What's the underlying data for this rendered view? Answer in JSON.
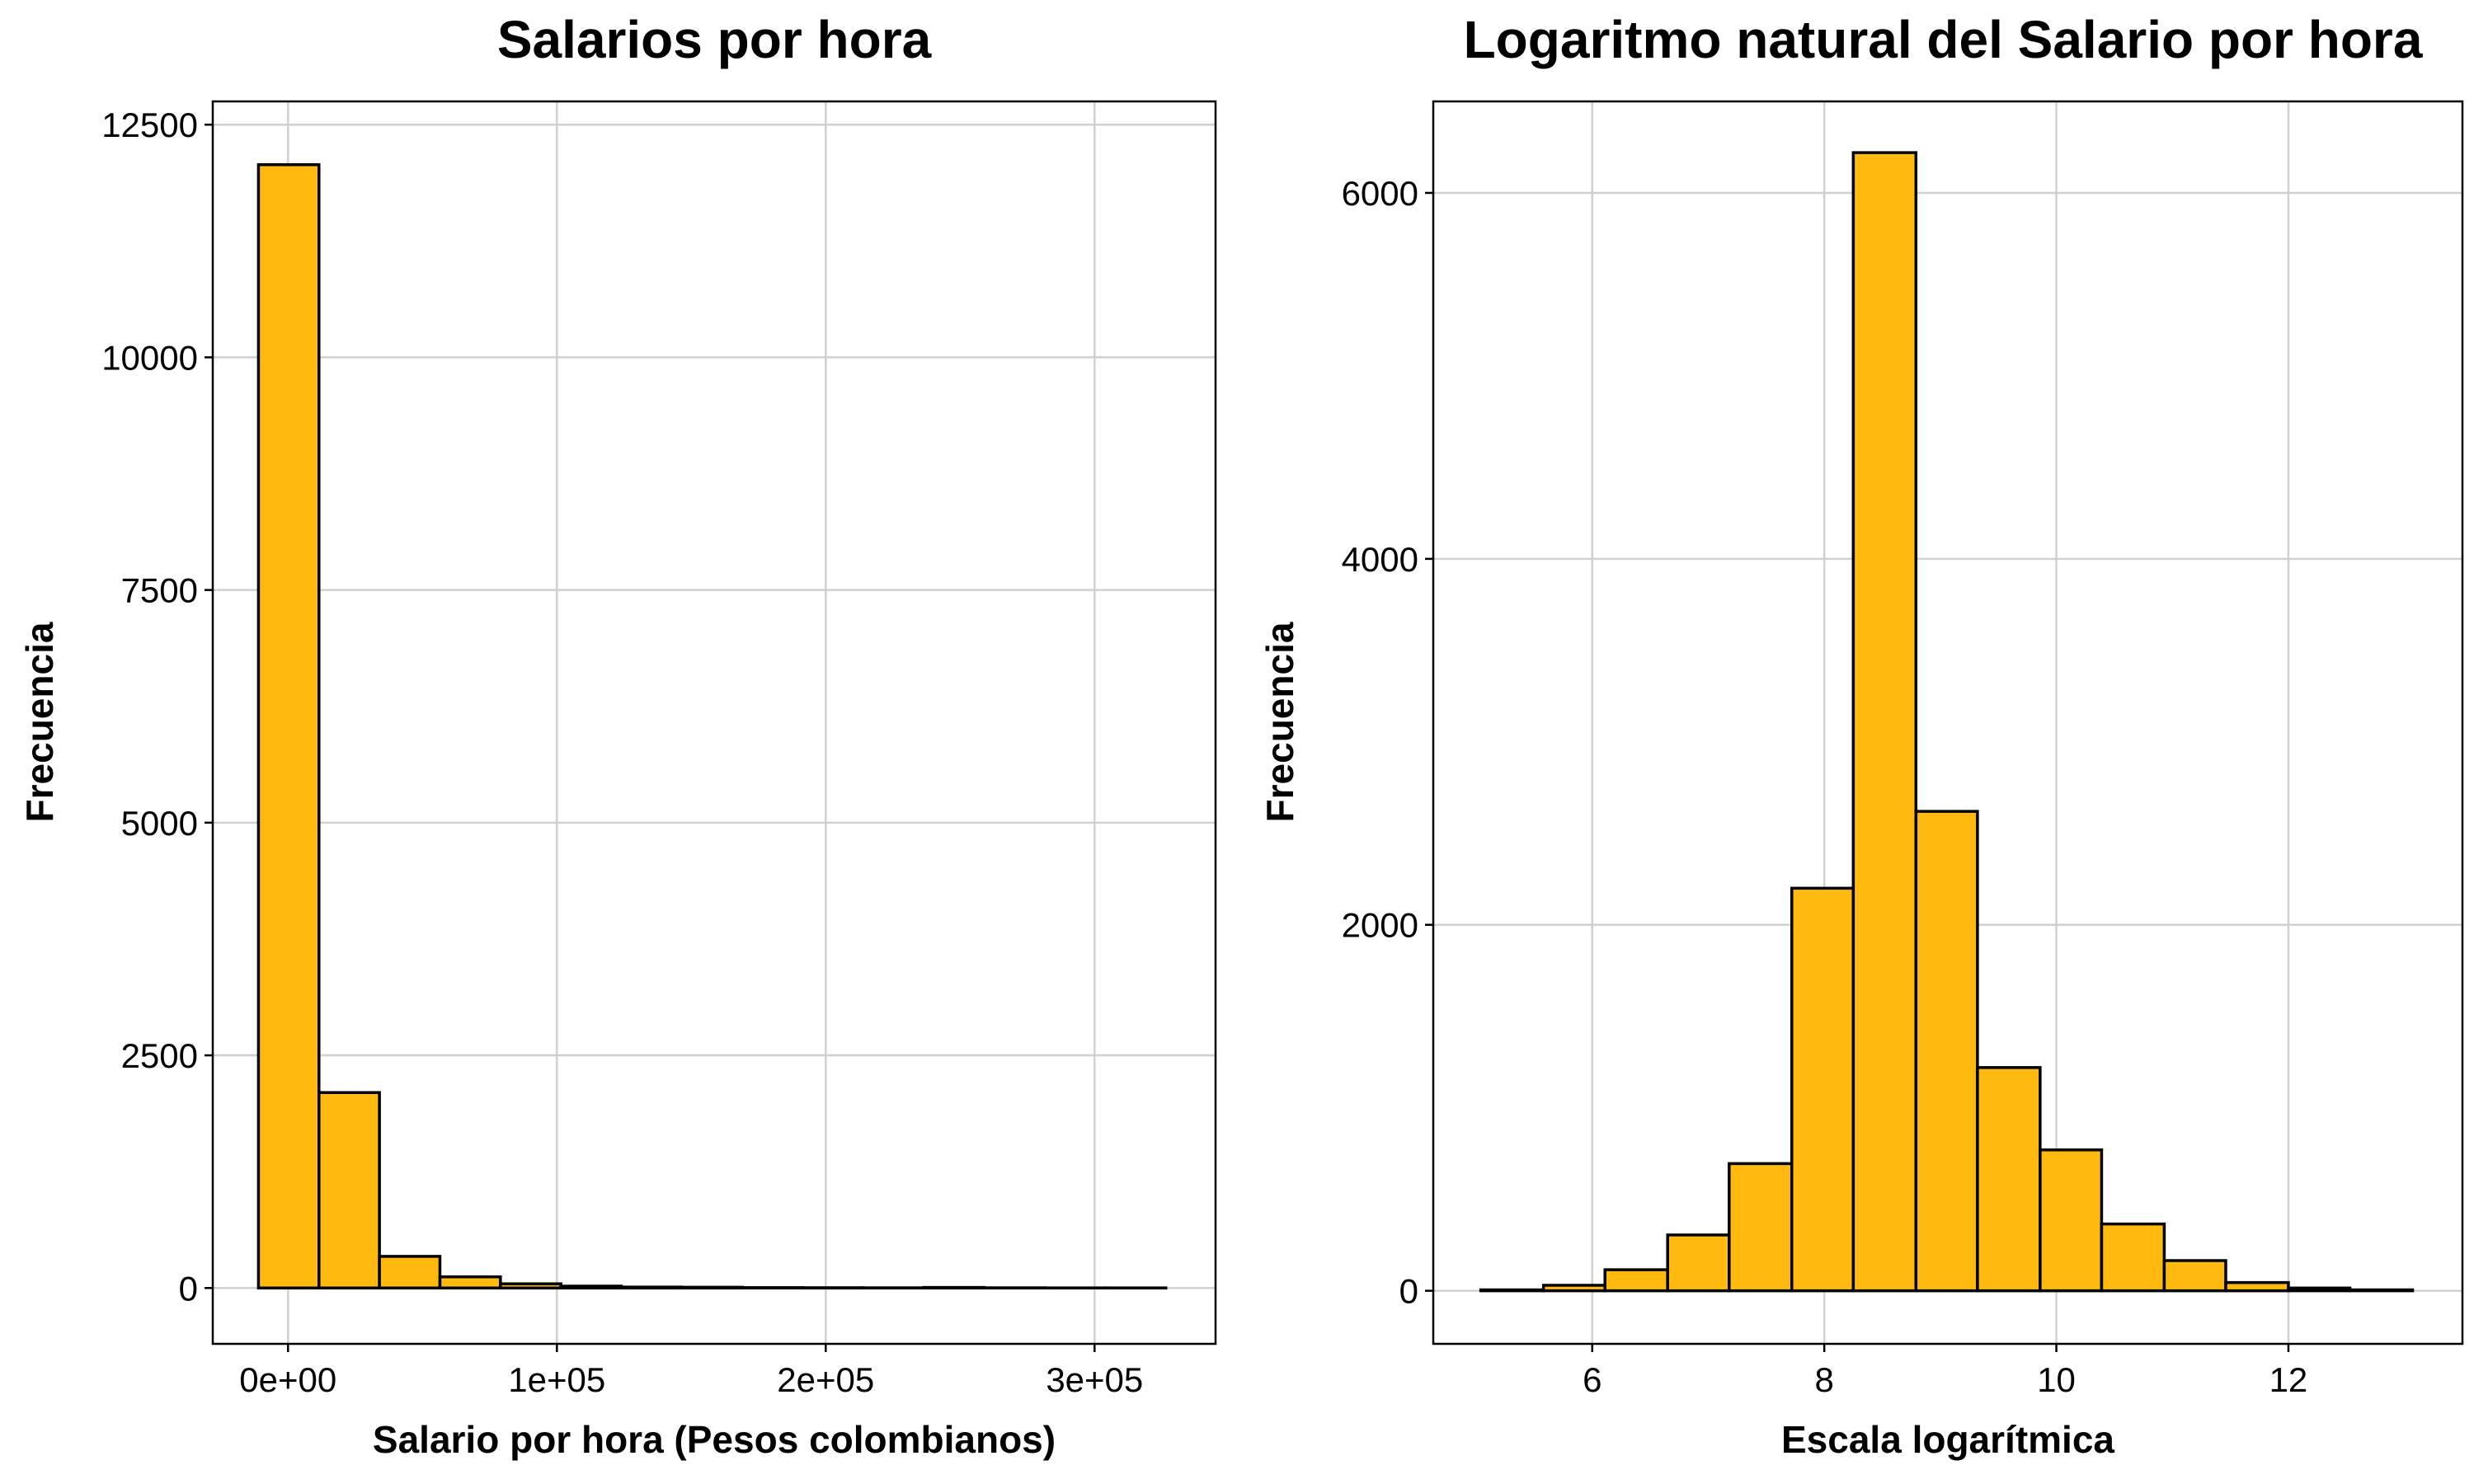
{
  "colors": {
    "bar_fill": "#FFB90F",
    "bar_stroke": "#000000",
    "grid": "#d0d0d0",
    "background": "#ffffff"
  },
  "chart_data": [
    {
      "type": "bar",
      "title": "Salarios por hora",
      "xlabel": "Salario por hora (Pesos colombianos)",
      "ylabel": "Frecuencia",
      "xlim": [
        -28000,
        345000
      ],
      "ylim": [
        -600,
        12750
      ],
      "xticks": [
        0,
        100000,
        200000,
        300000
      ],
      "xtick_labels": [
        "0e+00",
        "1e+05",
        "2e+05",
        "3e+05"
      ],
      "yticks": [
        0,
        2500,
        5000,
        7500,
        10000,
        12500
      ],
      "ytick_labels": [
        "0",
        "2500",
        "5000",
        "7500",
        "10000",
        "12500"
      ],
      "grid": true,
      "bins": [
        {
          "x0": -11000,
          "x1": 11500,
          "count": 12070
        },
        {
          "x0": 11500,
          "x1": 34000,
          "count": 2100
        },
        {
          "x0": 34000,
          "x1": 56500,
          "count": 340
        },
        {
          "x0": 56500,
          "x1": 79000,
          "count": 120
        },
        {
          "x0": 79000,
          "x1": 101500,
          "count": 45
        },
        {
          "x0": 101500,
          "x1": 124000,
          "count": 20
        },
        {
          "x0": 124000,
          "x1": 146500,
          "count": 10
        },
        {
          "x0": 146500,
          "x1": 169000,
          "count": 8
        },
        {
          "x0": 169000,
          "x1": 191500,
          "count": 4
        },
        {
          "x0": 191500,
          "x1": 214000,
          "count": 3
        },
        {
          "x0": 214000,
          "x1": 236500,
          "count": 2
        },
        {
          "x0": 236500,
          "x1": 259000,
          "count": 6
        },
        {
          "x0": 259000,
          "x1": 281500,
          "count": 2
        },
        {
          "x0": 281500,
          "x1": 304000,
          "count": 1
        },
        {
          "x0": 304000,
          "x1": 326500,
          "count": 1
        }
      ]
    },
    {
      "type": "bar",
      "title": "Logaritmo natural del Salario por hora",
      "xlabel": "Escala logarítmica",
      "ylabel": "Frecuencia",
      "xlim": [
        4.63,
        13.5
      ],
      "ylim": [
        -290,
        6500
      ],
      "xticks": [
        6,
        8,
        10,
        12
      ],
      "xtick_labels": [
        "6",
        "8",
        "10",
        "12"
      ],
      "yticks": [
        0,
        2000,
        4000,
        6000
      ],
      "ytick_labels": [
        "0",
        "2000",
        "4000",
        "6000"
      ],
      "grid": true,
      "bins": [
        {
          "x0": 5.04,
          "x1": 5.58,
          "count": 5
        },
        {
          "x0": 5.58,
          "x1": 6.11,
          "count": 30
        },
        {
          "x0": 6.11,
          "x1": 6.65,
          "count": 115
        },
        {
          "x0": 6.65,
          "x1": 7.18,
          "count": 305
        },
        {
          "x0": 7.18,
          "x1": 7.72,
          "count": 695
        },
        {
          "x0": 7.72,
          "x1": 8.25,
          "count": 2200
        },
        {
          "x0": 8.25,
          "x1": 8.79,
          "count": 6220
        },
        {
          "x0": 8.79,
          "x1": 9.32,
          "count": 2620
        },
        {
          "x0": 9.32,
          "x1": 9.86,
          "count": 1220
        },
        {
          "x0": 9.86,
          "x1": 10.39,
          "count": 770
        },
        {
          "x0": 10.39,
          "x1": 10.93,
          "count": 365
        },
        {
          "x0": 10.93,
          "x1": 11.46,
          "count": 165
        },
        {
          "x0": 11.46,
          "x1": 12.0,
          "count": 45
        },
        {
          "x0": 12.0,
          "x1": 12.53,
          "count": 15
        },
        {
          "x0": 12.53,
          "x1": 13.07,
          "count": 5
        }
      ]
    }
  ]
}
